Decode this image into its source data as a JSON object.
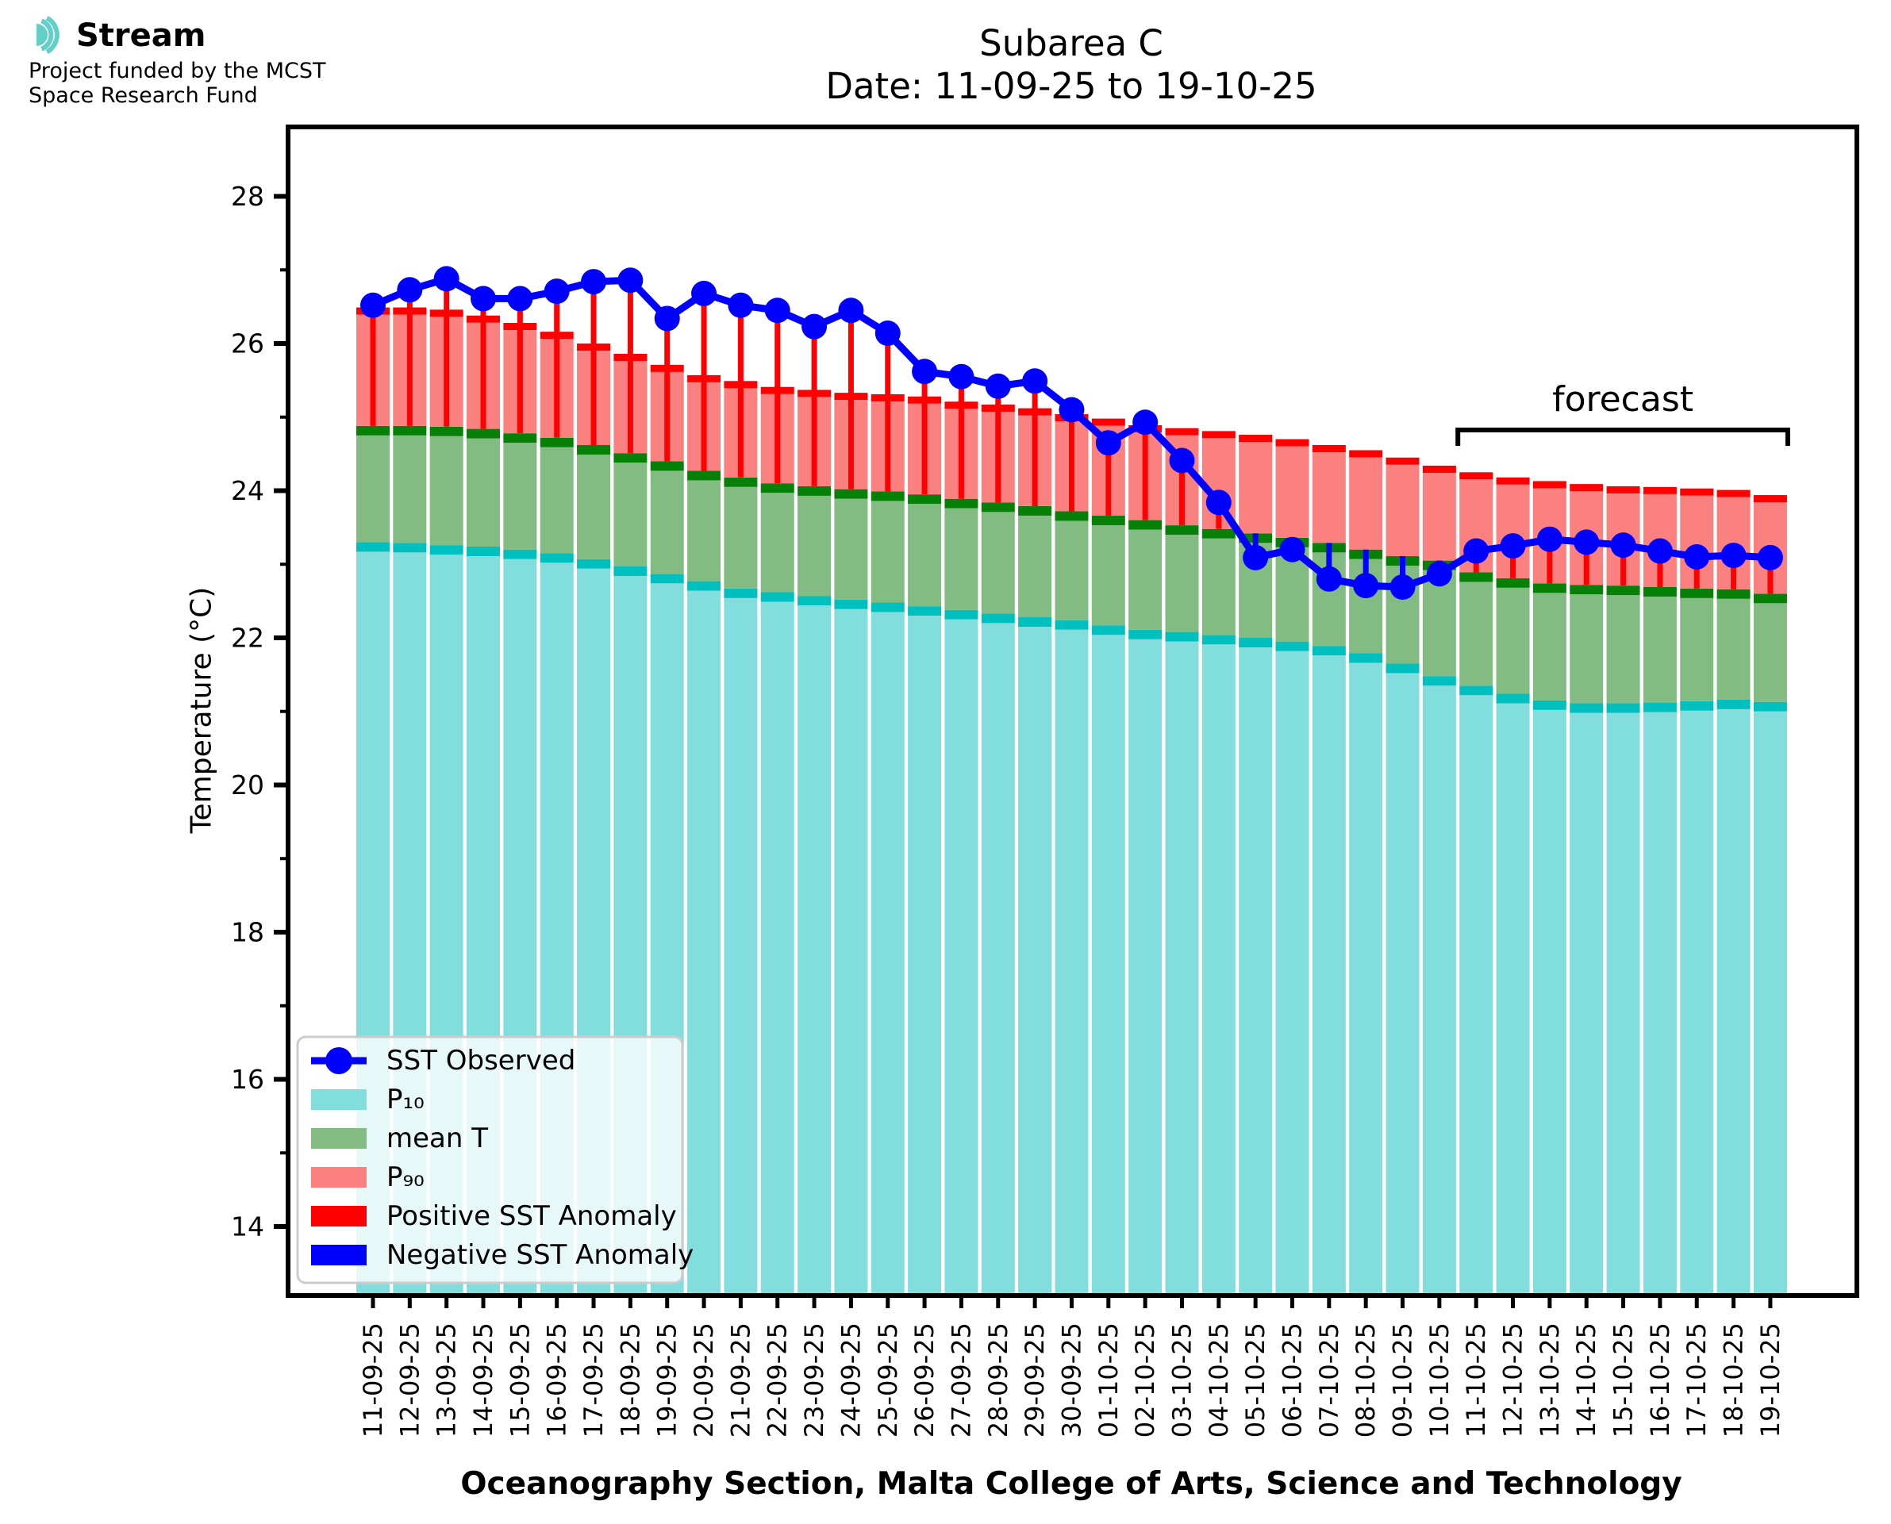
{
  "branding": {
    "logo_text": "Stream",
    "funding_line1": "Project funded by the MCST",
    "funding_line2": "Space Research Fund"
  },
  "title": {
    "line1": "Subarea C",
    "line2": "Date: 11-09-25 to 19-10-25"
  },
  "axes": {
    "y_label": "Temperature (°C)",
    "x_label": "Oceanography Section, Malta College of Arts, Science and Technology",
    "y_major_ticks": [
      14,
      16,
      18,
      20,
      22,
      24,
      26,
      28
    ],
    "y_minor_ticks": [
      15,
      17,
      19,
      21,
      23,
      25,
      27
    ]
  },
  "annotations": {
    "forecast_label": "forecast",
    "forecast_start_date": "11-10-25",
    "forecast_end_date": "19-10-25"
  },
  "legend": [
    {
      "label": "SST Observed",
      "swatch": "line_dot",
      "color_key": "observed"
    },
    {
      "label": "P₁₀",
      "swatch": "patch",
      "color_key": "p10_fill"
    },
    {
      "label": "mean T",
      "swatch": "patch",
      "color_key": "mean_fill"
    },
    {
      "label": "P₉₀",
      "swatch": "patch",
      "color_key": "p90_fill"
    },
    {
      "label": "Positive SST Anomaly",
      "swatch": "patch",
      "color_key": "positive_anomaly"
    },
    {
      "label": "Negative SST Anomaly",
      "swatch": "patch",
      "color_key": "negative_anomaly"
    }
  ],
  "colors": {
    "p10_fill": "#82dedc",
    "p10_edge": "#00bfbf",
    "mean_fill": "#82bc82",
    "mean_edge": "#068006",
    "p90_fill": "#fb8181",
    "p90_edge": "#ff0000",
    "observed": "#0000ff",
    "positive_anomaly": "#ff0000",
    "negative_anomaly": "#0000ff",
    "logo_teal": "#63cfc9",
    "legend_border": "#cccccc"
  },
  "chart_data": {
    "type": "bar",
    "title": "Subarea C  Date: 11-09-25 to 19-10-25",
    "xlabel": "Oceanography Section, Malta College of Arts, Science and Technology",
    "ylabel": "Temperature (°C)",
    "ylim": [
      13.06,
      28.94
    ],
    "grid": false,
    "legend_position": "lower left",
    "categories": [
      "11-09-25",
      "12-09-25",
      "13-09-25",
      "14-09-25",
      "15-09-25",
      "16-09-25",
      "17-09-25",
      "18-09-25",
      "19-09-25",
      "20-09-25",
      "21-09-25",
      "22-09-25",
      "23-09-25",
      "24-09-25",
      "25-09-25",
      "26-09-25",
      "27-09-25",
      "28-09-25",
      "29-09-25",
      "30-09-25",
      "01-10-25",
      "02-10-25",
      "03-10-25",
      "04-10-25",
      "05-10-25",
      "06-10-25",
      "07-10-25",
      "08-10-25",
      "09-10-25",
      "10-10-25",
      "11-10-25",
      "12-10-25",
      "13-10-25",
      "14-10-25",
      "15-10-25",
      "16-10-25",
      "17-10-25",
      "18-10-25",
      "19-10-25"
    ],
    "series": [
      {
        "name": "P10",
        "values": [
          23.3,
          23.29,
          23.26,
          23.24,
          23.2,
          23.15,
          23.07,
          22.97,
          22.87,
          22.77,
          22.67,
          22.62,
          22.57,
          22.52,
          22.48,
          22.43,
          22.38,
          22.33,
          22.28,
          22.24,
          22.17,
          22.11,
          22.08,
          22.04,
          22.0,
          21.95,
          21.89,
          21.79,
          21.65,
          21.48,
          21.35,
          21.24,
          21.15,
          21.11,
          21.11,
          21.12,
          21.14,
          21.16,
          21.13
        ]
      },
      {
        "name": "mean T",
        "values": [
          24.88,
          24.88,
          24.87,
          24.84,
          24.78,
          24.72,
          24.62,
          24.51,
          24.4,
          24.27,
          24.18,
          24.1,
          24.06,
          24.02,
          23.99,
          23.95,
          23.89,
          23.84,
          23.79,
          23.72,
          23.66,
          23.6,
          23.53,
          23.48,
          23.42,
          23.36,
          23.29,
          23.2,
          23.11,
          23.05,
          22.89,
          22.81,
          22.74,
          22.72,
          22.71,
          22.69,
          22.67,
          22.66,
          22.6
        ]
      },
      {
        "name": "P90",
        "values": [
          26.49,
          26.49,
          26.46,
          26.38,
          26.28,
          26.16,
          26.0,
          25.86,
          25.71,
          25.57,
          25.49,
          25.41,
          25.37,
          25.33,
          25.31,
          25.28,
          25.21,
          25.17,
          25.12,
          25.04,
          24.98,
          24.89,
          24.85,
          24.81,
          24.76,
          24.7,
          24.62,
          24.55,
          24.45,
          24.34,
          24.25,
          24.18,
          24.13,
          24.09,
          24.06,
          24.05,
          24.03,
          24.01,
          23.94
        ]
      },
      {
        "name": "SST Observed",
        "values": [
          26.52,
          26.73,
          26.88,
          26.61,
          26.61,
          26.71,
          26.84,
          26.86,
          26.34,
          26.68,
          26.52,
          26.45,
          26.23,
          26.45,
          26.14,
          25.62,
          25.55,
          25.42,
          25.49,
          25.1,
          24.65,
          24.93,
          24.41,
          23.84,
          23.09,
          23.2,
          22.8,
          22.71,
          22.69,
          22.87,
          23.18,
          23.25,
          23.34,
          23.3,
          23.26,
          23.18,
          23.1,
          23.12,
          23.09
        ]
      }
    ],
    "forecast_bracket_indices": [
      30,
      38
    ]
  }
}
